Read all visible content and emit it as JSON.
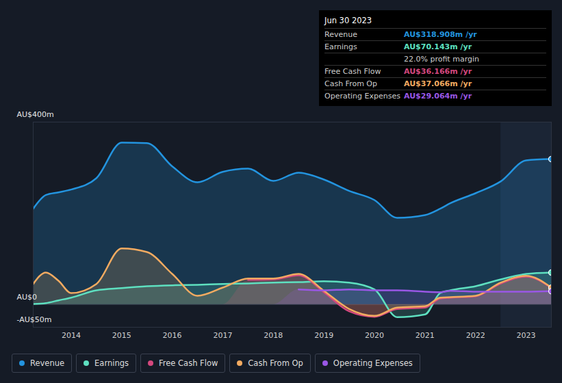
{
  "chart_data": {
    "type": "area",
    "x": [
      2013.25,
      2013.5,
      2013.75,
      2014,
      2014.5,
      2015,
      2015.5,
      2016,
      2016.5,
      2017,
      2017.5,
      2018,
      2018.5,
      2019,
      2019.5,
      2020,
      2020.45,
      2021,
      2021.3,
      2021.5,
      2022,
      2022.5,
      2023,
      2023.5
    ],
    "xlim": [
      2013.25,
      2023.5
    ],
    "xticks": [
      2014,
      2015,
      2016,
      2017,
      2018,
      2019,
      2020,
      2021,
      2022,
      2023
    ],
    "ylim": [
      -50,
      400
    ],
    "yticks": [
      {
        "value": 400,
        "label": "AU$400m"
      },
      {
        "value": 0,
        "label": "AU$0"
      },
      {
        "value": -50,
        "label": "-AU$50m"
      }
    ],
    "grid": true,
    "legend": "bottom",
    "shaded_region": [
      2022.5,
      2023.5
    ],
    "series": [
      {
        "name": "Revenue",
        "color": "#2394df",
        "values": [
          210,
          240,
          246,
          252,
          277,
          355,
          354,
          303,
          268,
          291,
          298,
          271,
          289,
          274,
          249,
          229,
          190,
          196,
          210,
          222,
          244,
          270,
          316,
          318.908
        ]
      },
      {
        "name": "Earnings",
        "color": "#5ee0c0",
        "values": [
          1,
          3,
          9,
          15,
          31,
          36,
          40,
          42,
          43,
          45,
          46,
          48,
          49,
          51,
          48,
          33,
          -28,
          -22,
          25,
          31,
          40,
          55,
          67,
          70.143
        ]
      },
      {
        "name": "Free Cash Flow",
        "color": "#d5487e",
        "values": [
          null,
          null,
          null,
          null,
          null,
          null,
          null,
          null,
          null,
          null,
          54,
          55,
          64,
          27,
          -15,
          -27,
          -10,
          -7,
          13,
          15,
          18,
          46,
          61,
          36.166
        ]
      },
      {
        "name": "Cash From Op",
        "color": "#f3ab61",
        "values": [
          45,
          70,
          52,
          25,
          45,
          123,
          115,
          67,
          19,
          37,
          57,
          57,
          67,
          30,
          -10,
          -25,
          -7,
          -4,
          15,
          16,
          19,
          48,
          63,
          37.066
        ]
      },
      {
        "name": "Operating Expenses",
        "color": "#9a57e6",
        "values": [
          null,
          null,
          null,
          null,
          null,
          null,
          null,
          null,
          null,
          null,
          null,
          null,
          33,
          31,
          33,
          31,
          31,
          28,
          27,
          30,
          28,
          28,
          28,
          29.064
        ]
      }
    ],
    "tooltip": {
      "title": "Jun 30 2023",
      "rows": [
        {
          "label": "Revenue",
          "value": "AU$318.908m /yr"
        },
        {
          "label": "Earnings",
          "value": "AU$70.143m /yr"
        },
        {
          "value": "22.0% profit margin"
        },
        {
          "label": "Free Cash Flow",
          "value": "AU$36.166m /yr"
        },
        {
          "label": "Cash From Op",
          "value": "AU$37.066m /yr"
        },
        {
          "label": "Operating Expenses",
          "value": "AU$29.064m /yr"
        }
      ]
    }
  }
}
